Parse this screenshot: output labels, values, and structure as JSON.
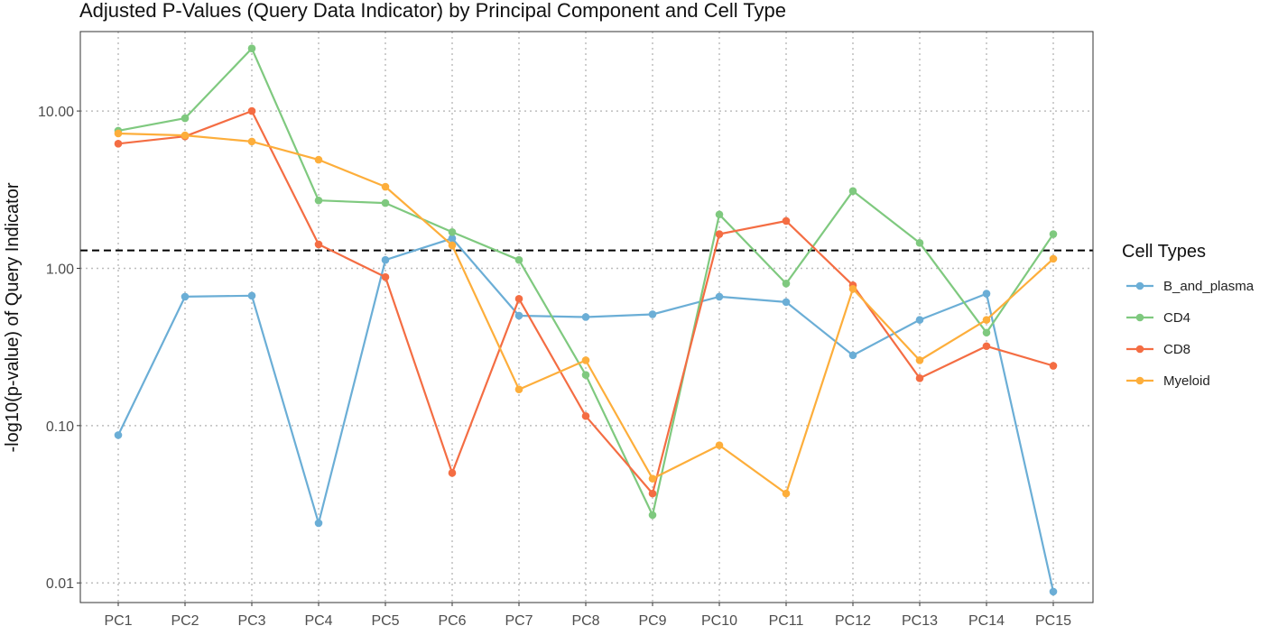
{
  "chart_data": {
    "type": "line",
    "title": "Adjusted P-Values (Query Data Indicator) by Principal Component and Cell Type",
    "xlabel": "",
    "ylabel": "-log10(p-value) of Query Indicator",
    "y_scale": "log10",
    "ylim": [
      0.0075,
      32
    ],
    "y_ticks": [
      {
        "value": 0.01,
        "label": "0.01"
      },
      {
        "value": 0.1,
        "label": "0.10"
      },
      {
        "value": 1,
        "label": "1.00"
      },
      {
        "value": 10,
        "label": "10.00"
      }
    ],
    "categories": [
      "PC1",
      "PC2",
      "PC3",
      "PC4",
      "PC5",
      "PC6",
      "PC7",
      "PC8",
      "PC9",
      "PC10",
      "PC11",
      "PC12",
      "PC13",
      "PC14",
      "PC15"
    ],
    "reference_line": {
      "value": 1.3,
      "style": "dashed",
      "color": "#000000"
    },
    "grid": true,
    "legend": {
      "title": "Cell Types",
      "position": "right"
    },
    "series": [
      {
        "name": "B_and_plasma",
        "color": "#6baed6",
        "values": [
          0.087,
          0.66,
          0.67,
          0.024,
          1.13,
          1.55,
          0.5,
          0.49,
          0.51,
          0.66,
          0.61,
          0.28,
          0.47,
          0.69,
          0.0088
        ]
      },
      {
        "name": "CD4",
        "color": "#7fc97f",
        "values": [
          7.5,
          9.0,
          25.0,
          2.7,
          2.6,
          1.7,
          1.13,
          0.21,
          0.027,
          2.2,
          0.8,
          3.1,
          1.45,
          0.39,
          1.65
        ]
      },
      {
        "name": "CD8",
        "color": "#f46d43",
        "values": [
          6.2,
          6.9,
          10.0,
          1.42,
          0.88,
          0.05,
          0.64,
          0.115,
          0.037,
          1.65,
          2.0,
          0.78,
          0.2,
          0.32,
          0.24
        ]
      },
      {
        "name": "Myeloid",
        "color": "#fdae3b",
        "values": [
          7.2,
          7.0,
          6.4,
          4.9,
          3.3,
          1.4,
          0.17,
          0.26,
          0.046,
          0.075,
          0.037,
          0.74,
          0.26,
          0.47,
          1.15
        ]
      }
    ]
  }
}
